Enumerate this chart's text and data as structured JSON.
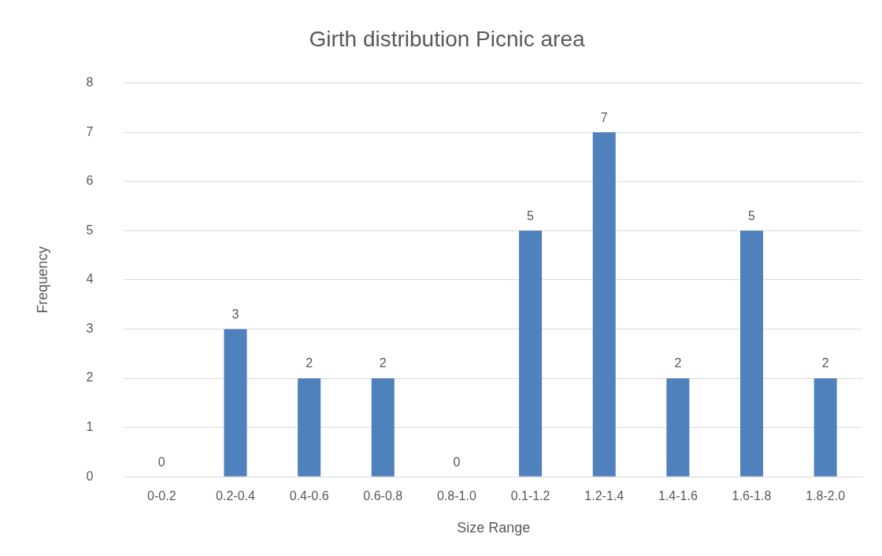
{
  "chart_data": {
    "type": "bar",
    "title": "Girth distribution Picnic area",
    "xlabel": "Size Range",
    "ylabel": "Frequency",
    "categories": [
      "0-0.2",
      "0.2-0.4",
      "0.4-0.6",
      "0.6-0.8",
      "0.8-1.0",
      "0.1-1.2",
      "1.2-1.4",
      "1.4-1.6",
      "1.6-1.8",
      "1.8-2.0"
    ],
    "values": [
      0,
      3,
      2,
      2,
      0,
      5,
      7,
      2,
      5,
      2
    ],
    "color": "#4f81bd",
    "ylim": [
      0,
      8
    ],
    "yticks": [
      0,
      1,
      2,
      3,
      4,
      5,
      6,
      7,
      8
    ],
    "grid": "y",
    "data_labels": true,
    "legend": false
  }
}
